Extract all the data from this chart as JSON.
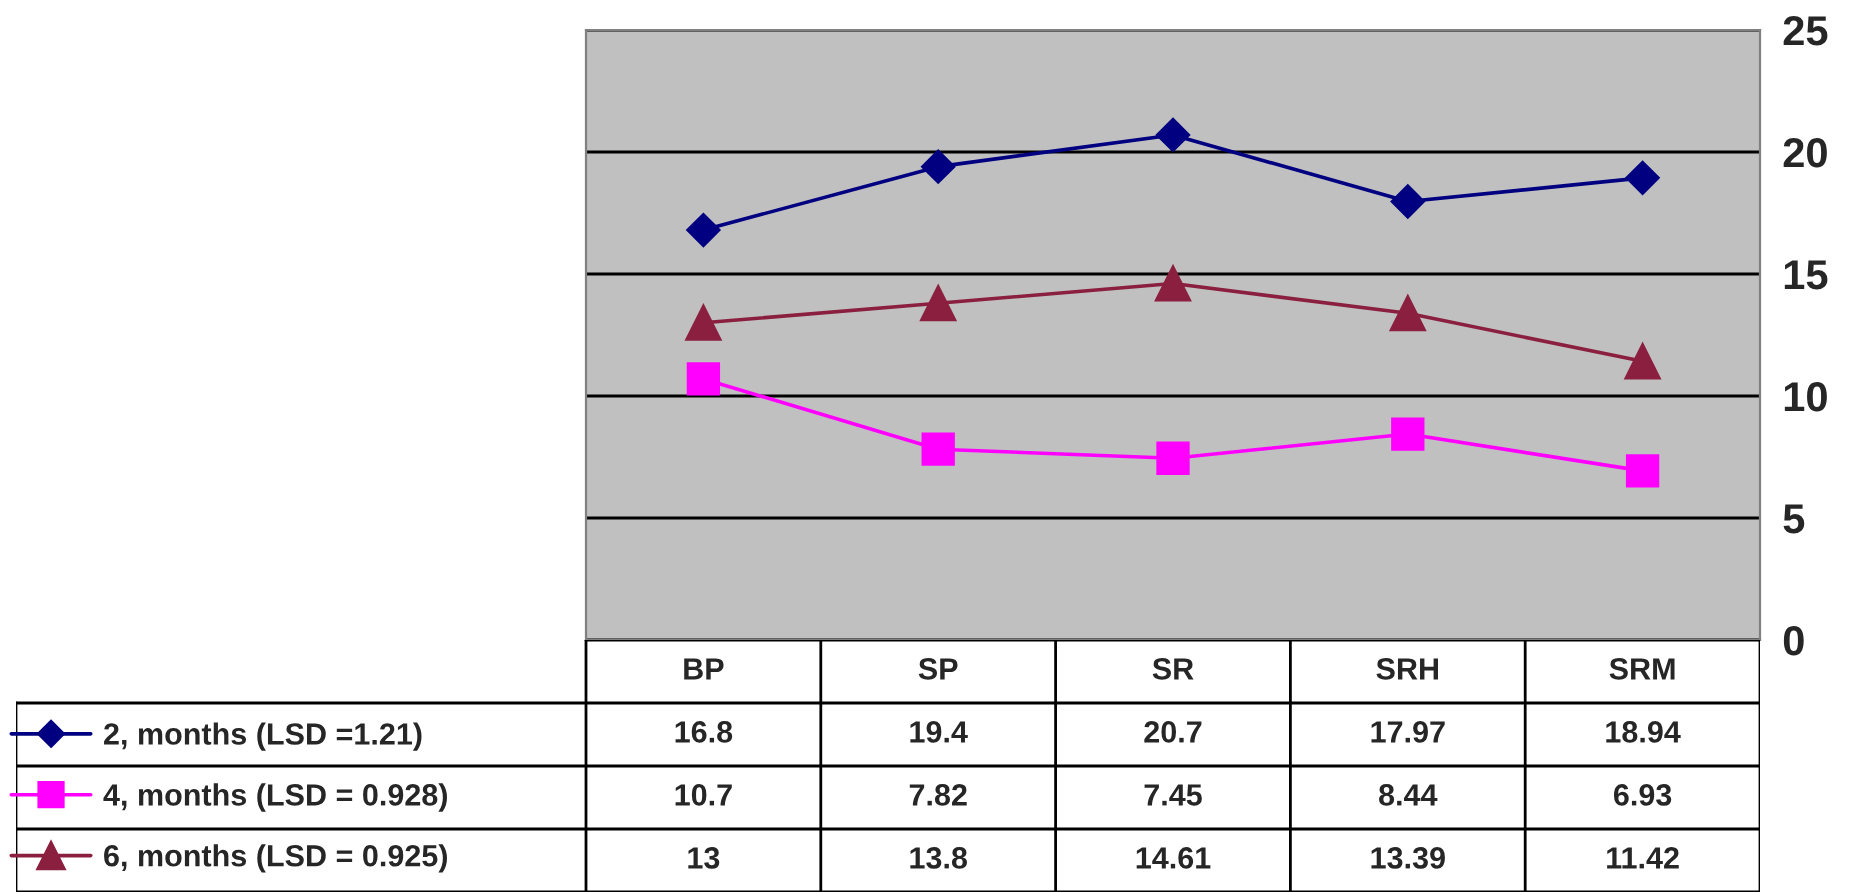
{
  "chart_data": {
    "type": "line",
    "categories": [
      "BP",
      "SP",
      "SR",
      "SRH",
      "SRM"
    ],
    "series": [
      {
        "name": "2, months (LSD =1.21)",
        "color": "#000080",
        "marker": "diamond",
        "values": [
          16.8,
          19.4,
          20.7,
          17.97,
          18.94
        ]
      },
      {
        "name": "4, months (LSD = 0.928)",
        "color": "#ff00ff",
        "marker": "square",
        "values": [
          10.7,
          7.82,
          7.45,
          8.44,
          6.93
        ]
      },
      {
        "name": "6, months (LSD = 0.925)",
        "color": "#8b1f3f",
        "marker": "triangle",
        "values": [
          13,
          13.8,
          14.61,
          13.39,
          11.42
        ]
      }
    ],
    "ylim": [
      0,
      25
    ],
    "yticks": [
      0,
      5,
      10,
      15,
      20,
      25
    ],
    "grid": "y",
    "legend": "bottom left",
    "data_labels": true
  }
}
